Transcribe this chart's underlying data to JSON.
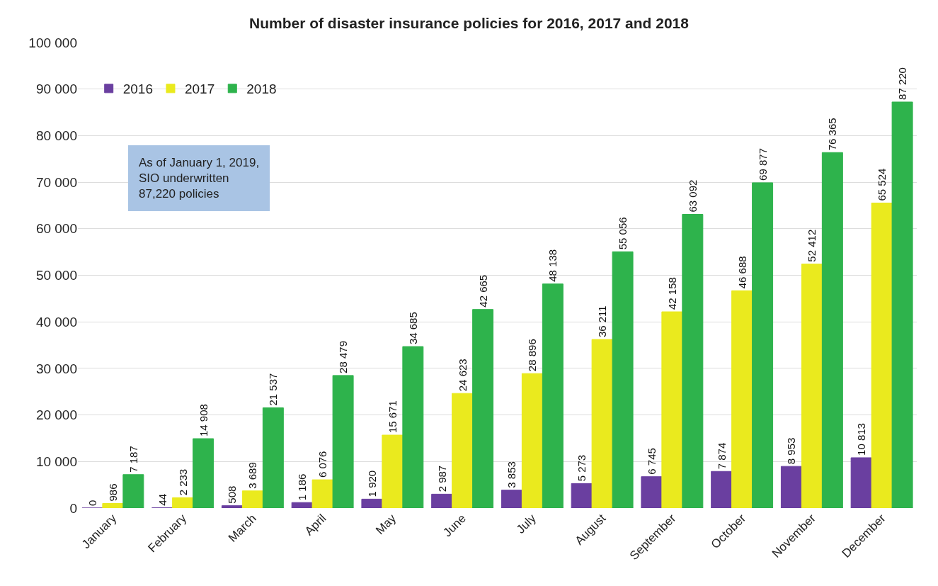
{
  "chart_data": {
    "type": "bar",
    "title": "Number of disaster insurance policies for 2016, 2017 and 2018",
    "categories": [
      "January",
      "February",
      "March",
      "April",
      "May",
      "June",
      "July",
      "August",
      "September",
      "October",
      "November",
      "December"
    ],
    "series": [
      {
        "name": "2016",
        "color": "#6a3fa0",
        "values": [
          0,
          44,
          508,
          1186,
          1920,
          2987,
          3853,
          5273,
          6745,
          7874,
          8953,
          10813
        ]
      },
      {
        "name": "2017",
        "color": "#eaea1e",
        "values": [
          986,
          2233,
          3689,
          6076,
          15671,
          24623,
          28896,
          36211,
          42158,
          46688,
          52412,
          65524
        ]
      },
      {
        "name": "2018",
        "color": "#2eb34c",
        "values": [
          7187,
          14908,
          21537,
          28479,
          34685,
          42665,
          48138,
          55056,
          63092,
          69877,
          76365,
          87220
        ]
      }
    ],
    "ylim": [
      0,
      100000
    ],
    "yticks": [
      {
        "value": 0,
        "label": "0"
      },
      {
        "value": 10000,
        "label": "10 000"
      },
      {
        "value": 20000,
        "label": "20 000"
      },
      {
        "value": 30000,
        "label": "30 000"
      },
      {
        "value": 40000,
        "label": "40 000"
      },
      {
        "value": 50000,
        "label": "50 000"
      },
      {
        "value": 60000,
        "label": "60 000"
      },
      {
        "value": 70000,
        "label": "70 000"
      },
      {
        "value": 80000,
        "label": "80 000"
      },
      {
        "value": 90000,
        "label": "90 000"
      },
      {
        "value": 100000,
        "label": "100 000"
      }
    ],
    "grid": "y",
    "legend": "top left",
    "data_labels": true,
    "annotations": [
      "As of January 1, 2019,\nSIO underwritten\n87,220 policies"
    ]
  }
}
